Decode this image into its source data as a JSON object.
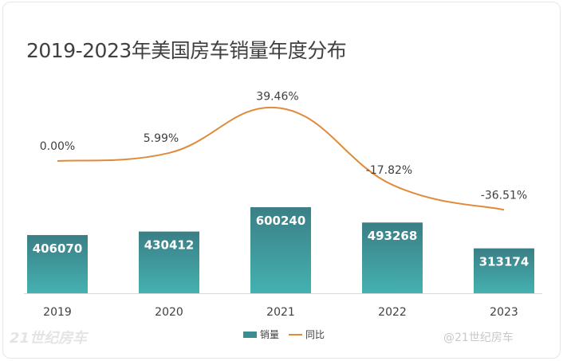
{
  "chart_data": {
    "type": "bar+line",
    "title": "2019-2023年美国房车销量年度分布",
    "categories": [
      "2019",
      "2020",
      "2021",
      "2022",
      "2023"
    ],
    "series": [
      {
        "name": "销量",
        "type": "bar",
        "values": [
          406070,
          430412,
          600240,
          493268,
          313174
        ],
        "labels": [
          "406070",
          "430412",
          "600240",
          "493268",
          "313174"
        ]
      },
      {
        "name": "同比",
        "type": "line",
        "values": [
          0.0,
          5.99,
          39.46,
          -17.82,
          -36.51
        ],
        "labels": [
          "0.00%",
          "5.99%",
          "39.46%",
          "-17.82%",
          "-36.51%"
        ]
      }
    ],
    "legend_position": "bottom",
    "grid": false,
    "colors": {
      "bar_top": "#3a7f86",
      "bar_bottom": "#45b1b0",
      "line": "#e08a3c"
    }
  },
  "watermark": {
    "left": "21世纪房车",
    "right": "@21世纪房车"
  }
}
